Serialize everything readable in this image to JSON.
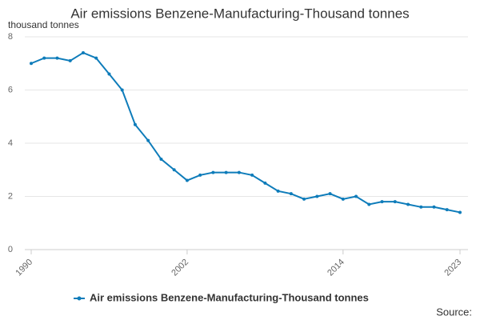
{
  "chart_data": {
    "type": "line",
    "title": "Air emissions Benzene-Manufacturing-Thousand tonnes",
    "y_label": "thousand tonnes",
    "source": "Source:",
    "x": [
      1990,
      1991,
      1992,
      1993,
      1994,
      1995,
      1996,
      1997,
      1998,
      1999,
      2000,
      2001,
      2002,
      2003,
      2004,
      2005,
      2006,
      2007,
      2008,
      2009,
      2010,
      2011,
      2012,
      2013,
      2014,
      2015,
      2016,
      2017,
      2018,
      2019,
      2020,
      2021,
      2022,
      2023
    ],
    "series": [
      {
        "name": "Air emissions Benzene-Manufacturing-Thousand tonnes",
        "color": "#0e7cba",
        "values": [
          7.0,
          7.2,
          7.2,
          7.1,
          7.4,
          7.2,
          6.6,
          6.0,
          4.7,
          4.1,
          3.4,
          3.0,
          2.6,
          2.8,
          2.9,
          2.9,
          2.9,
          2.8,
          2.5,
          2.2,
          2.1,
          1.9,
          2.0,
          2.1,
          1.9,
          2.0,
          1.7,
          1.8,
          1.8,
          1.7,
          1.6,
          1.6,
          1.5,
          1.4
        ]
      }
    ],
    "xlim": [
      1990,
      2023
    ],
    "xticks": [
      1990,
      2002,
      2014,
      2023
    ],
    "ylim": [
      0,
      8
    ],
    "yticks": [
      0,
      2,
      4,
      6,
      8
    ],
    "grid": true
  }
}
